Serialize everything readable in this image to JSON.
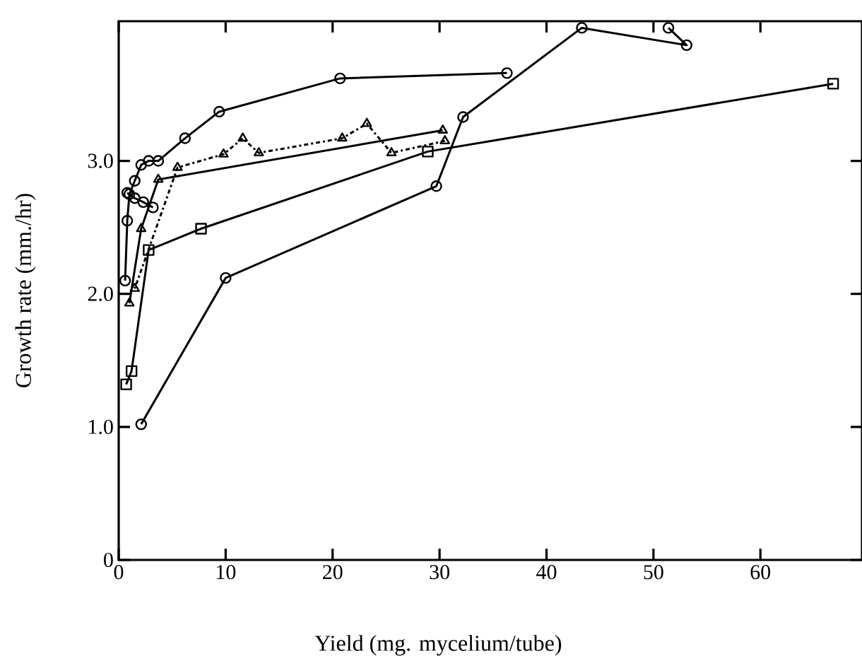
{
  "chart_data": {
    "type": "line",
    "xlabel": "Yield (mg. mycelium/tube)",
    "ylabel": "Growth rate (mm./hr)",
    "xlim": [
      0,
      69.5
    ],
    "ylim": [
      0,
      4.05
    ],
    "xticks": [
      0,
      10,
      20,
      30,
      40,
      50,
      60
    ],
    "yticks": [
      0,
      {
        "value": 1,
        "label": "1.0"
      },
      {
        "value": 2,
        "label": "2.0"
      },
      {
        "value": 3,
        "label": "3.0"
      }
    ],
    "series": [
      {
        "color": "#000000",
        "marker": "circle",
        "line_style": "solid",
        "x": [
          51.4,
          53.1,
          43.3,
          32.2,
          29.7,
          10.0,
          2.1
        ],
        "values": [
          4.0,
          3.87,
          4.0,
          3.33,
          2.81,
          2.12,
          1.02
        ]
      },
      {
        "color": "#000000",
        "marker": "circle",
        "line_style": "solid",
        "x": [
          36.3,
          20.7,
          9.4,
          6.2,
          3.7,
          2.8,
          2.1,
          1.5,
          1.0,
          0.8,
          0.6
        ],
        "values": [
          3.66,
          3.62,
          3.37,
          3.17,
          3.0,
          3.0,
          2.97,
          2.85,
          2.75,
          2.55,
          2.1
        ]
      },
      {
        "color": "#000000",
        "marker": "circle",
        "line_style": "solid",
        "x": [
          3.2,
          2.3,
          1.5,
          0.8
        ],
        "values": [
          2.65,
          2.69,
          2.72,
          2.76
        ]
      },
      {
        "color": "#000000",
        "marker": "triangle",
        "line_style": "dashed",
        "x": [
          30.5,
          25.5,
          23.2,
          20.9,
          13.1,
          11.6,
          9.8,
          5.5,
          1.5
        ],
        "values": [
          3.15,
          3.06,
          3.28,
          3.17,
          3.06,
          3.17,
          3.05,
          2.95,
          2.04
        ]
      },
      {
        "color": "#000000",
        "marker": "triangle",
        "line_style": "solid",
        "x": [
          30.3,
          3.7,
          2.1,
          1.0
        ],
        "values": [
          3.23,
          2.86,
          2.49,
          1.93
        ]
      },
      {
        "color": "#000000",
        "marker": "square",
        "line_style": "solid",
        "x": [
          66.8,
          28.9,
          7.7,
          2.8,
          1.2,
          0.7
        ],
        "values": [
          3.58,
          3.07,
          2.49,
          2.33,
          1.42,
          1.32
        ]
      }
    ]
  }
}
